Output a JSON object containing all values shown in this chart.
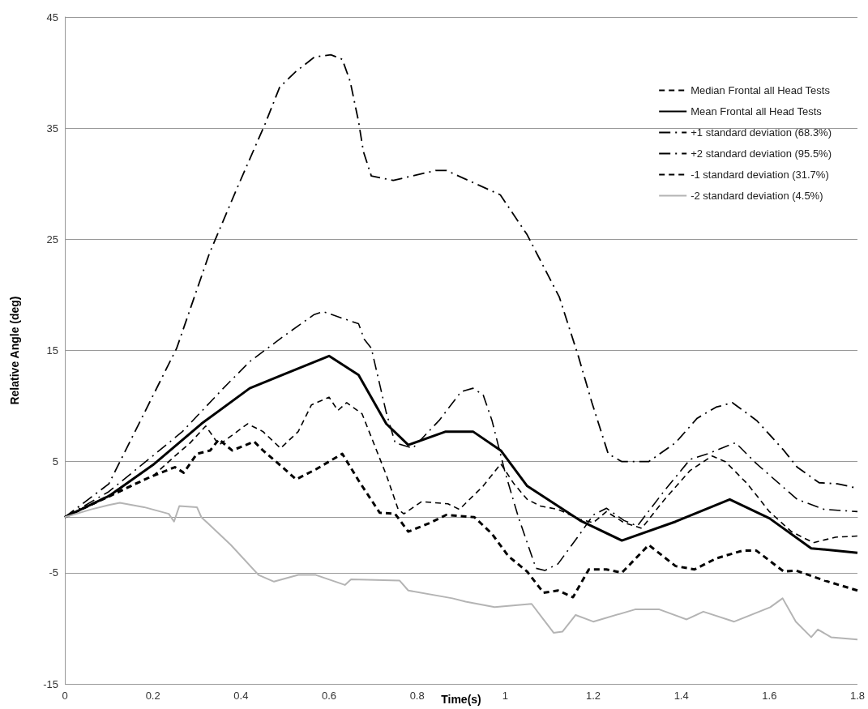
{
  "chart_data": {
    "type": "line",
    "xlabel": "Time(s)",
    "ylabel": "Relative Angle (deg)",
    "xlim": [
      0,
      1.8
    ],
    "xticks": [
      0,
      0.2,
      0.4,
      0.6,
      0.8,
      1,
      1.2,
      1.4,
      1.6,
      1.8
    ],
    "ylim": [
      -15,
      45
    ],
    "yticks": [
      -15,
      -5,
      5,
      15,
      25,
      35,
      45
    ],
    "grid": "y",
    "legend": "top right",
    "marker": "none",
    "series": [
      {
        "name": "Median Frontal all Head Tests",
        "color": "#000000",
        "line_style": "dashed",
        "x": [
          0,
          0.1,
          0.2,
          0.25,
          0.285,
          0.32,
          0.35,
          0.415,
          0.45,
          0.49,
          0.53,
          0.56,
          0.6,
          0.62,
          0.64,
          0.675,
          0.73,
          0.757,
          0.77,
          0.81,
          0.87,
          0.896,
          0.95,
          0.99,
          1.02,
          1.05,
          1.08,
          1.12,
          1.17,
          1.2,
          1.23,
          1.27,
          1.31,
          1.36,
          1.42,
          1.47,
          1.5,
          1.55,
          1.6,
          1.65,
          1.7,
          1.75,
          1.8
        ],
        "values": [
          0,
          1.8,
          3.7,
          5.5,
          6.7,
          8.2,
          6.5,
          8.4,
          7.7,
          6.2,
          7.7,
          10.1,
          10.8,
          9.6,
          10.3,
          9.3,
          3.8,
          0.7,
          0.3,
          1.4,
          1.2,
          0.7,
          2.8,
          4.8,
          3,
          1.6,
          1,
          0.7,
          -0.2,
          -0.5,
          0.5,
          -0.5,
          -1,
          1.5,
          4.2,
          5.5,
          5,
          3,
          0.5,
          -1.3,
          -2.3,
          -1.8,
          -1.7
        ]
      },
      {
        "name": "Mean Frontal all Head Tests",
        "color": "#000000",
        "line_style": "solid",
        "x": [
          0,
          0.1,
          0.2,
          0.31,
          0.42,
          0.5,
          0.6,
          0.667,
          0.73,
          0.78,
          0.865,
          0.927,
          0.99,
          1.05,
          1.17,
          1.265,
          1.387,
          1.51,
          1.6,
          1.695,
          1.8
        ],
        "values": [
          0,
          1.9,
          4.7,
          8.4,
          11.6,
          12.9,
          14.5,
          12.8,
          8.4,
          6.5,
          7.7,
          7.7,
          6,
          2.8,
          -0.3,
          -2.1,
          -0.4,
          1.6,
          -0.1,
          -2.8,
          -3.2
        ]
      },
      {
        "name": "+1 standard deviation (68.3%)",
        "color": "#000000",
        "line_style": "dashdot",
        "x": [
          0,
          0.1,
          0.19,
          0.267,
          0.36,
          0.42,
          0.494,
          0.565,
          0.586,
          0.667,
          0.68,
          0.696,
          0.73,
          0.75,
          0.79,
          0.85,
          0.9,
          0.927,
          0.95,
          0.97,
          1,
          1.03,
          1.07,
          1.09,
          1.12,
          1.17,
          1.2,
          1.23,
          1.27,
          1.3,
          1.36,
          1.42,
          1.46,
          1.523,
          1.571,
          1.663,
          1.725,
          1.8
        ],
        "values": [
          0,
          2.3,
          5.2,
          7.7,
          11.6,
          14,
          16.2,
          18.2,
          18.5,
          17.4,
          16,
          15.2,
          9.4,
          6.7,
          6.2,
          8.7,
          11.3,
          11.6,
          11,
          8.7,
          4,
          0,
          -4.6,
          -4.8,
          -4.2,
          -1.5,
          0.2,
          0.8,
          -0.3,
          -0.8,
          2.3,
          5.2,
          5.7,
          6.7,
          4.8,
          1.6,
          0.7,
          0.5
        ]
      },
      {
        "name": "+2 standard deviation (95.5%)",
        "color": "#000000",
        "line_style": "dashdot",
        "x": [
          0,
          0.1,
          0.254,
          0.328,
          0.39,
          0.455,
          0.488,
          0.525,
          0.567,
          0.604,
          0.63,
          0.648,
          0.667,
          0.678,
          0.696,
          0.746,
          0.843,
          0.866,
          0.989,
          1.05,
          1.123,
          1.166,
          1.197,
          1.234,
          1.265,
          1.326,
          1.387,
          1.436,
          1.479,
          1.516,
          1.571,
          1.633,
          1.663,
          1.713,
          1.755,
          1.8
        ],
        "values": [
          0,
          3,
          15.2,
          23.7,
          29.5,
          35.4,
          38.7,
          40.1,
          41.4,
          41.6,
          41.2,
          39.2,
          35.6,
          32.9,
          30.7,
          30.3,
          31.2,
          31.2,
          29,
          25.4,
          19.8,
          14.5,
          10.3,
          5.7,
          5,
          5,
          6.7,
          8.9,
          9.9,
          10.3,
          8.7,
          6,
          4.5,
          3.1,
          3,
          2.6
        ]
      },
      {
        "name": "-1 standard deviation (31.7%)",
        "color": "#000000",
        "line_style": "dashed",
        "x": [
          0,
          0.1,
          0.193,
          0.25,
          0.27,
          0.3,
          0.33,
          0.35,
          0.38,
          0.43,
          0.45,
          0.5,
          0.525,
          0.57,
          0.63,
          0.667,
          0.715,
          0.75,
          0.78,
          0.83,
          0.866,
          0.93,
          0.97,
          1.007,
          1.05,
          1.087,
          1.12,
          1.154,
          1.19,
          1.23,
          1.265,
          1.326,
          1.387,
          1.43,
          1.48,
          1.54,
          1.57,
          1.633,
          1.66,
          1.725,
          1.8
        ],
        "values": [
          0,
          1.9,
          3.6,
          4.5,
          4,
          5.7,
          6,
          7,
          6,
          6.8,
          6,
          4.3,
          3.4,
          4.3,
          5.7,
          3.3,
          0.4,
          0.3,
          -1.3,
          -0.5,
          0.2,
          0,
          -1.5,
          -3.5,
          -4.9,
          -6.8,
          -6.6,
          -7.2,
          -4.7,
          -4.7,
          -5,
          -2.5,
          -4.4,
          -4.7,
          -3.7,
          -3,
          -3,
          -4.9,
          -4.8,
          -5.7,
          -6.6
        ]
      },
      {
        "name": "-2 standard deviation (4.5%)",
        "color": "#b4b4b4",
        "line_style": "solid",
        "x": [
          0,
          0.06,
          0.1,
          0.125,
          0.18,
          0.236,
          0.248,
          0.26,
          0.3,
          0.31,
          0.377,
          0.44,
          0.475,
          0.53,
          0.57,
          0.636,
          0.65,
          0.76,
          0.78,
          0.88,
          0.91,
          0.976,
          1.06,
          1.11,
          1.13,
          1.16,
          1.2,
          1.295,
          1.35,
          1.412,
          1.45,
          1.52,
          1.602,
          1.63,
          1.66,
          1.695,
          1.71,
          1.74,
          1.8
        ],
        "values": [
          0,
          0.7,
          1.1,
          1.3,
          0.9,
          0.3,
          -0.4,
          1,
          0.9,
          0,
          -2.5,
          -5.2,
          -5.8,
          -5.2,
          -5.2,
          -6.1,
          -5.6,
          -5.7,
          -6.6,
          -7.3,
          -7.6,
          -8.1,
          -7.8,
          -10.4,
          -10.3,
          -8.8,
          -9.4,
          -8.3,
          -8.3,
          -9.2,
          -8.5,
          -9.4,
          -8.1,
          -7.3,
          -9.4,
          -10.8,
          -10.1,
          -10.8,
          -11
        ]
      }
    ]
  }
}
